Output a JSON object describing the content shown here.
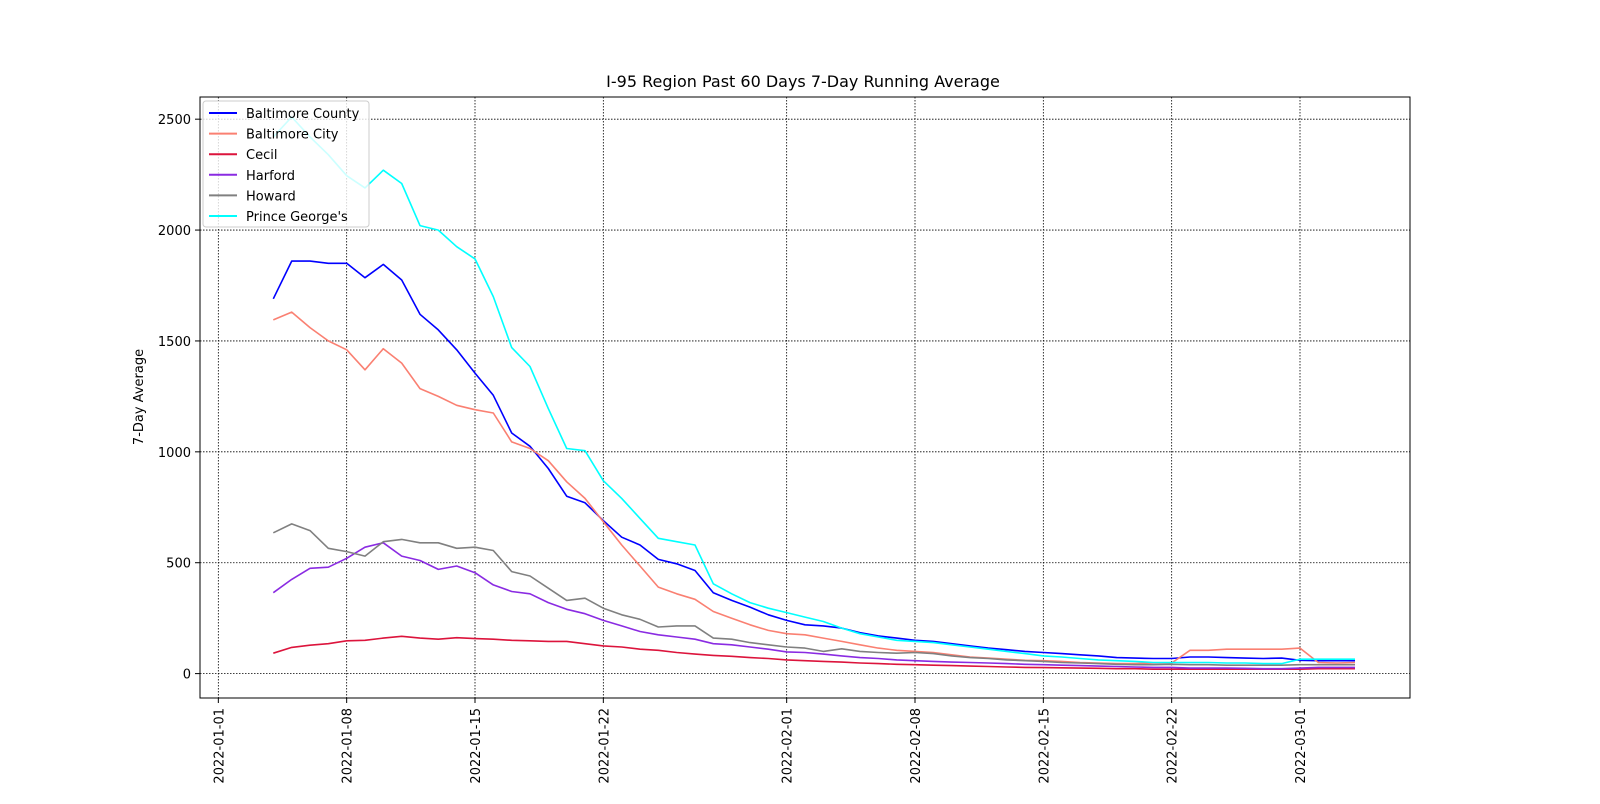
{
  "chart_data": {
    "type": "line",
    "title": "I-95 Region Past 60 Days 7-Day Running Average",
    "xlabel": "",
    "ylabel": "7-Day Average",
    "x_start": "2022-01-04",
    "x_end": "2022-03-05",
    "xlim": [
      "2021-12-31",
      "2022-03-07"
    ],
    "ylim": [
      -110,
      2600
    ],
    "xticks": [
      "2022-01-01",
      "2022-01-08",
      "2022-01-15",
      "2022-01-22",
      "2022-02-01",
      "2022-02-08",
      "2022-02-15",
      "2022-02-22",
      "2022-03-01"
    ],
    "yticks": [
      0,
      500,
      1000,
      1500,
      2000,
      2500
    ],
    "grid": true,
    "legend": "top-left",
    "series": [
      {
        "name": "Baltimore County",
        "color": "#0000ff",
        "values": [
          1690,
          1860,
          1860,
          1850,
          1850,
          1785,
          1845,
          1775,
          1620,
          1550,
          1460,
          1355,
          1255,
          1085,
          1025,
          925,
          800,
          770,
          690,
          615,
          580,
          515,
          495,
          465,
          365,
          330,
          300,
          265,
          240,
          220,
          215,
          205,
          185,
          170,
          160,
          150,
          145,
          135,
          125,
          115,
          108,
          100,
          95,
          90,
          85,
          80,
          72,
          70,
          68,
          68,
          75,
          75,
          72,
          70,
          68,
          70,
          60,
          58,
          58,
          58
        ]
      },
      {
        "name": "Baltimore City",
        "color": "#fa8072",
        "values": [
          1595,
          1630,
          1560,
          1500,
          1460,
          1370,
          1465,
          1400,
          1285,
          1250,
          1210,
          1190,
          1175,
          1045,
          1015,
          960,
          865,
          790,
          685,
          580,
          485,
          390,
          360,
          335,
          280,
          250,
          220,
          195,
          180,
          175,
          160,
          145,
          130,
          115,
          105,
          100,
          95,
          85,
          75,
          70,
          65,
          60,
          58,
          55,
          50,
          48,
          45,
          45,
          48,
          48,
          105,
          105,
          110,
          110,
          110,
          110,
          115,
          50,
          48,
          50
        ]
      },
      {
        "name": "Cecil",
        "color": "#dc143c",
        "values": [
          92,
          118,
          128,
          135,
          148,
          150,
          160,
          168,
          160,
          155,
          162,
          158,
          155,
          150,
          148,
          145,
          145,
          135,
          125,
          120,
          110,
          105,
          95,
          88,
          82,
          78,
          72,
          68,
          62,
          58,
          55,
          52,
          48,
          45,
          42,
          40,
          38,
          36,
          34,
          32,
          30,
          28,
          27,
          26,
          25,
          24,
          22,
          22,
          20,
          20,
          20,
          20,
          20,
          20,
          20,
          20,
          20,
          22,
          22,
          22
        ]
      },
      {
        "name": "Harford",
        "color": "#8a2be2",
        "values": [
          365,
          425,
          475,
          480,
          520,
          570,
          590,
          530,
          510,
          470,
          485,
          455,
          400,
          370,
          360,
          320,
          290,
          270,
          240,
          215,
          190,
          175,
          165,
          155,
          135,
          130,
          120,
          110,
          98,
          95,
          88,
          80,
          72,
          68,
          62,
          58,
          55,
          52,
          50,
          48,
          45,
          42,
          40,
          38,
          36,
          34,
          32,
          30,
          28,
          28,
          25,
          25,
          25,
          24,
          22,
          22,
          25,
          28,
          28,
          28
        ]
      },
      {
        "name": "Howard",
        "color": "#808080",
        "values": [
          635,
          675,
          645,
          565,
          550,
          530,
          595,
          605,
          590,
          590,
          565,
          570,
          555,
          460,
          440,
          385,
          330,
          340,
          295,
          265,
          245,
          210,
          215,
          215,
          160,
          155,
          140,
          130,
          120,
          115,
          100,
          112,
          100,
          95,
          92,
          95,
          90,
          80,
          72,
          68,
          62,
          58,
          55,
          50,
          48,
          45,
          42,
          40,
          40,
          42,
          40,
          40,
          38,
          38,
          38,
          38,
          40,
          40,
          40,
          40
        ]
      },
      {
        "name": "Prince George's",
        "color": "#00ffff",
        "values": [
          2420,
          2510,
          2420,
          2340,
          2245,
          2190,
          2270,
          2210,
          2020,
          2000,
          1925,
          1870,
          1700,
          1470,
          1385,
          1195,
          1015,
          1005,
          870,
          790,
          700,
          610,
          595,
          580,
          405,
          360,
          320,
          295,
          275,
          255,
          235,
          205,
          180,
          165,
          150,
          145,
          140,
          130,
          120,
          110,
          100,
          90,
          80,
          75,
          68,
          62,
          58,
          55,
          50,
          50,
          50,
          50,
          48,
          48,
          45,
          45,
          65,
          65,
          65,
          65
        ]
      }
    ]
  }
}
